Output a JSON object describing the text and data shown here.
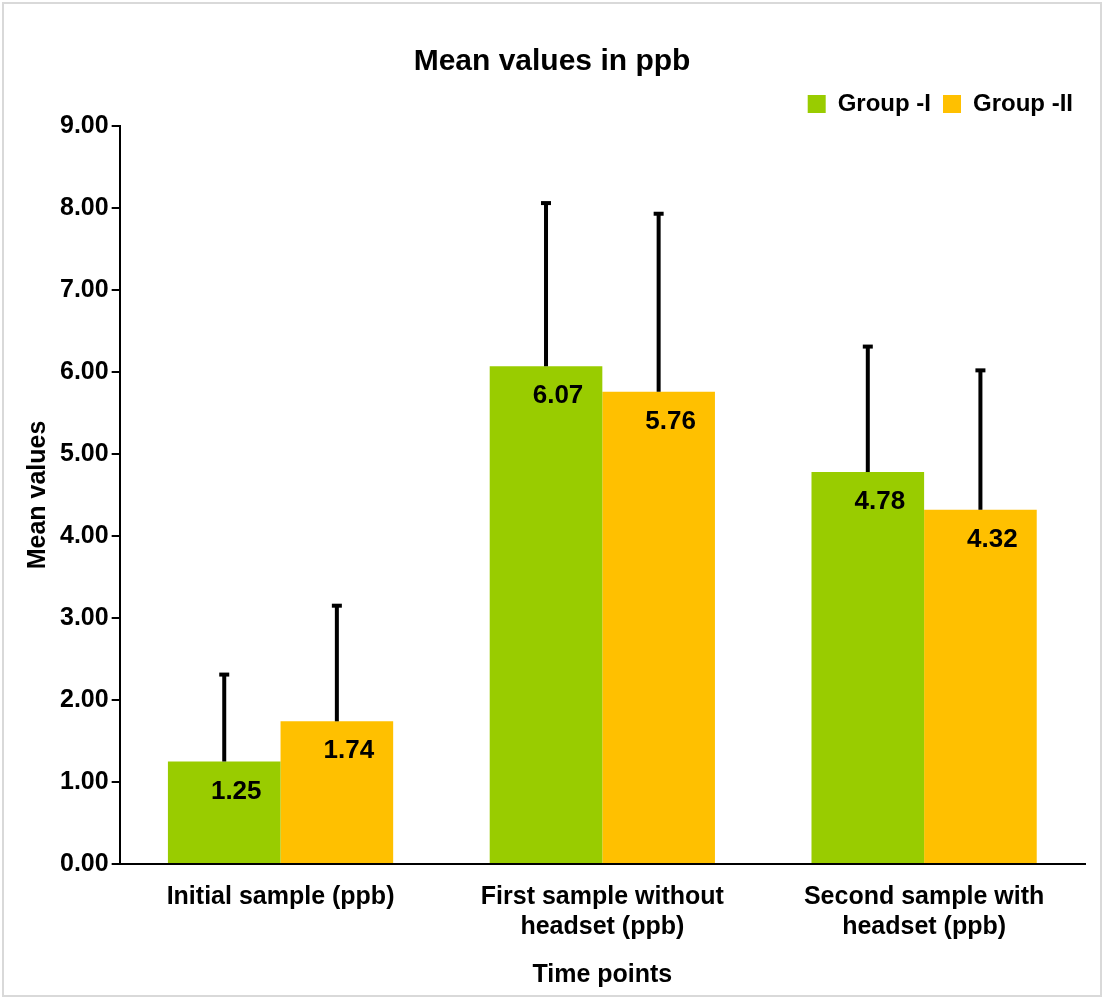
{
  "chart_data": {
    "type": "bar",
    "title": "Mean values in ppb",
    "xlabel": "Time points",
    "ylabel": "Mean values",
    "categories": [
      "Initial sample (ppb)",
      "First sample without headset (ppb)",
      "Second sample with headset (ppb)"
    ],
    "series": [
      {
        "name": "Group -I",
        "color": "#99cc00",
        "values": [
          1.25,
          6.07,
          4.78
        ],
        "errors": [
          [
            1.25,
            2.31
          ],
          [
            6.07,
            8.06
          ],
          [
            4.78,
            6.31
          ]
        ]
      },
      {
        "name": "Group -II",
        "color": "#ffc000",
        "values": [
          1.74,
          5.76,
          4.32
        ],
        "errors": [
          [
            1.74,
            3.15
          ],
          [
            5.76,
            7.93
          ],
          [
            4.32,
            6.02
          ]
        ]
      }
    ],
    "ylim": [
      0,
      9
    ],
    "yticks": [
      {
        "value": 0,
        "label": "0.00"
      },
      {
        "value": 1,
        "label": "1.00"
      },
      {
        "value": 2,
        "label": "2.00"
      },
      {
        "value": 3,
        "label": "3.00"
      },
      {
        "value": 4,
        "label": "4.00"
      },
      {
        "value": 5,
        "label": "5.00"
      },
      {
        "value": 6,
        "label": "6.00"
      },
      {
        "value": 7,
        "label": "7.00"
      },
      {
        "value": 8,
        "label": "8.00"
      },
      {
        "value": 9,
        "label": "9.00"
      }
    ],
    "grid": false,
    "legend": "top right",
    "data_labels": true
  }
}
